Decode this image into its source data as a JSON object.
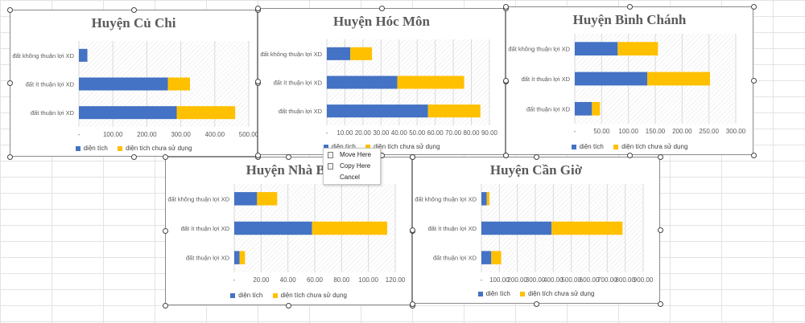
{
  "colors": {
    "series1": "#4472C4",
    "series2": "#FFC000",
    "gridline": "#d9d9d9"
  },
  "context_menu": {
    "items": [
      "Move Here",
      "Copy Here",
      "Cancel"
    ],
    "icons": [
      "move-icon",
      "copy-icon"
    ]
  },
  "chart_data": [
    {
      "type": "bar",
      "stacked": true,
      "orientation": "horizontal",
      "title": "Huyện Củ Chi",
      "categories": [
        "đất không thuận lợi XD",
        "đất ít thuận lợi XD",
        "đất thuận lợi XD"
      ],
      "series": [
        {
          "name": "diện tích",
          "values": [
            25,
            262,
            288
          ]
        },
        {
          "name": "diện tích chưa sử dụng",
          "values": [
            0,
            65,
            172
          ]
        }
      ],
      "xlim": [
        0,
        500
      ],
      "xticks": [
        "-",
        "100.00",
        "200.00",
        "300.00",
        "400.00",
        "500.00"
      ],
      "grid": true,
      "legend": "bottom"
    },
    {
      "type": "bar",
      "stacked": true,
      "orientation": "horizontal",
      "title": "Huyện Hóc Môn",
      "categories": [
        "đất không thuận lợi XD",
        "đất ít thuận lợi XD",
        "đất thuận lợi XD"
      ],
      "series": [
        {
          "name": "diện tích",
          "values": [
            13,
            39,
            56
          ]
        },
        {
          "name": "diện tích chưa sử dụng",
          "values": [
            12,
            37,
            29
          ]
        }
      ],
      "xlim": [
        0,
        90
      ],
      "xticks": [
        "-",
        "10.00",
        "20.00",
        "30.00",
        "40.00",
        "50.00",
        "60.00",
        "70.00",
        "80.00",
        "90.00"
      ],
      "grid": true,
      "legend": "bottom"
    },
    {
      "type": "bar",
      "stacked": true,
      "orientation": "horizontal",
      "title": "Huyện Bình Chánh",
      "categories": [
        "đất không thuận lợi XD",
        "đất ít thuận lợi XD",
        "đất thuận lợi XD"
      ],
      "series": [
        {
          "name": "diện tích",
          "values": [
            80,
            135,
            32
          ]
        },
        {
          "name": "diện tích chưa sử dụng",
          "values": [
            75,
            117,
            15
          ]
        }
      ],
      "xlim": [
        0,
        300
      ],
      "xticks": [
        "-",
        "50.00",
        "100.00",
        "150.00",
        "200.00",
        "250.00",
        "300.00"
      ],
      "grid": true,
      "legend": "bottom"
    },
    {
      "type": "bar",
      "stacked": true,
      "orientation": "horizontal",
      "title": "Huyện Nhà Bè",
      "categories": [
        "đất không thuận lợi XD",
        "đất ít thuận lợi XD",
        "đất thuận lợi XD"
      ],
      "series": [
        {
          "name": "diện tích",
          "values": [
            17,
            58,
            4
          ]
        },
        {
          "name": "diện tích chưa sử dụng",
          "values": [
            15,
            56,
            4
          ]
        }
      ],
      "xlim": [
        0,
        120
      ],
      "xticks": [
        "-",
        "20.00",
        "40.00",
        "60.00",
        "80.00",
        "100.00",
        "120.00"
      ],
      "grid": true,
      "legend": "bottom"
    },
    {
      "type": "bar",
      "stacked": true,
      "orientation": "horizontal",
      "title": "Huyện Cần Giờ",
      "categories": [
        "đất không thuận lợi XD",
        "đất ít thuận lợi XD",
        "đất thuận lợi XD"
      ],
      "series": [
        {
          "name": "diện tích",
          "values": [
            30,
            390,
            55
          ]
        },
        {
          "name": "diện tích chưa sử dụng",
          "values": [
            15,
            395,
            55
          ]
        }
      ],
      "xlim": [
        0,
        900
      ],
      "xticks": [
        "-",
        "100.00",
        "200.00",
        "300.00",
        "400.00",
        "500.00",
        "600.00",
        "700.00",
        "800.00",
        "900.00"
      ],
      "grid": true,
      "legend": "bottom"
    }
  ]
}
